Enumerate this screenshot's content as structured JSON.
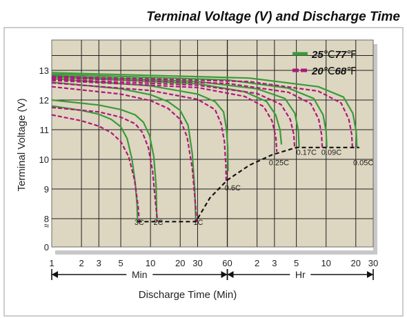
{
  "chart_data": {
    "type": "line",
    "title": "Terminal Voltage (V) and Discharge Time",
    "xlabel": "Discharge Time (Min)",
    "ylabel": "Terminal Voltage (V)",
    "x_scale": "log",
    "x_unit": "minutes",
    "xlim": [
      1,
      1800
    ],
    "ylim": [
      0,
      13.9
    ],
    "y_ticks": [
      0,
      8,
      9,
      10,
      11,
      12,
      13
    ],
    "y_break_marker": "≈",
    "x_tick_labels": [
      {
        "t": 1,
        "label": "1"
      },
      {
        "t": 2,
        "label": "2"
      },
      {
        "t": 3,
        "label": "3"
      },
      {
        "t": 5,
        "label": "5"
      },
      {
        "t": 10,
        "label": "10"
      },
      {
        "t": 20,
        "label": "20"
      },
      {
        "t": 30,
        "label": "30"
      },
      {
        "t": 60,
        "label": "60"
      },
      {
        "t": 120,
        "label": "2"
      },
      {
        "t": 180,
        "label": "3"
      },
      {
        "t": 300,
        "label": "5"
      },
      {
        "t": 600,
        "label": "10"
      },
      {
        "t": 1200,
        "label": "20"
      },
      {
        "t": 1800,
        "label": "30"
      }
    ],
    "x_ranges": [
      {
        "label": "Min",
        "from": 1,
        "to": 60
      },
      {
        "label": "Hr",
        "from": 60,
        "to": 1800
      }
    ],
    "grid": true,
    "legend": {
      "position": "top-right",
      "entries": [
        {
          "bold": "25",
          "unit": "℃",
          "bold2": "77",
          "unit2": "℉",
          "color": "#3a9a3a",
          "style": "solid"
        },
        {
          "bold": "20",
          "unit": "℃",
          "bold2": "68",
          "unit2": "℉",
          "color": "#b0167a",
          "style": "dashed"
        }
      ]
    },
    "colors": {
      "green": "#3a9a3a",
      "magenta": "#b0167a",
      "background": "#ddd6c0"
    },
    "series": [
      {
        "group": "3C",
        "color": "green",
        "style": "solid",
        "points": [
          [
            1,
            11.8
          ],
          [
            2,
            11.65
          ],
          [
            3,
            11.52
          ],
          [
            4,
            11.35
          ],
          [
            5,
            11.1
          ],
          [
            5.8,
            10.7
          ],
          [
            6.5,
            10.0
          ],
          [
            7.0,
            9.2
          ],
          [
            7.3,
            8.5
          ],
          [
            7.4,
            7.9
          ]
        ]
      },
      {
        "group": "3C",
        "color": "magenta",
        "style": "dashed",
        "points": [
          [
            1,
            11.5
          ],
          [
            2,
            11.3
          ],
          [
            3,
            11.12
          ],
          [
            4,
            10.9
          ],
          [
            5,
            10.6
          ],
          [
            6,
            10.1
          ],
          [
            6.9,
            9.3
          ],
          [
            7.5,
            8.4
          ],
          [
            7.7,
            7.9
          ]
        ]
      },
      {
        "group": "2C",
        "color": "green",
        "style": "solid",
        "points": [
          [
            1,
            12.0
          ],
          [
            3,
            11.83
          ],
          [
            5,
            11.68
          ],
          [
            7,
            11.5
          ],
          [
            8.5,
            11.25
          ],
          [
            9.8,
            10.8
          ],
          [
            10.8,
            10.1
          ],
          [
            11.4,
            9.1
          ],
          [
            11.6,
            7.9
          ]
        ]
      },
      {
        "group": "2C",
        "color": "magenta",
        "style": "dashed",
        "points": [
          [
            1,
            11.75
          ],
          [
            3,
            11.6
          ],
          [
            5,
            11.42
          ],
          [
            7,
            11.2
          ],
          [
            8.3,
            10.9
          ],
          [
            9.5,
            10.4
          ],
          [
            10.5,
            9.6
          ],
          [
            11.2,
            8.6
          ],
          [
            11.8,
            7.9
          ]
        ]
      },
      {
        "group": "1C",
        "color": "green",
        "style": "solid",
        "points": [
          [
            1,
            12.6
          ],
          [
            5,
            12.38
          ],
          [
            10,
            12.18
          ],
          [
            15,
            11.95
          ],
          [
            20,
            11.65
          ],
          [
            24,
            11.15
          ],
          [
            26.5,
            10.2
          ],
          [
            28,
            9.0
          ],
          [
            28.8,
            7.9
          ]
        ]
      },
      {
        "group": "1C",
        "color": "magenta",
        "style": "dashed",
        "points": [
          [
            1,
            12.45
          ],
          [
            5,
            12.2
          ],
          [
            10,
            11.98
          ],
          [
            15,
            11.72
          ],
          [
            20,
            11.35
          ],
          [
            23.5,
            10.75
          ],
          [
            26.5,
            9.7
          ],
          [
            28.5,
            8.5
          ],
          [
            29.4,
            7.9
          ]
        ]
      },
      {
        "group": "0.6C",
        "color": "green",
        "style": "solid",
        "points": [
          [
            1,
            12.72
          ],
          [
            10,
            12.48
          ],
          [
            30,
            12.2
          ],
          [
            45,
            11.95
          ],
          [
            55,
            11.6
          ],
          [
            59,
            11.0
          ],
          [
            60.5,
            10.4
          ],
          [
            61,
            9.6
          ]
        ]
      },
      {
        "group": "0.6C",
        "color": "magenta",
        "style": "dashed",
        "points": [
          [
            1,
            12.58
          ],
          [
            10,
            12.32
          ],
          [
            30,
            12.02
          ],
          [
            45,
            11.68
          ],
          [
            52,
            11.2
          ],
          [
            56,
            10.6
          ],
          [
            58,
            9.8
          ],
          [
            58.5,
            9.2
          ]
        ]
      },
      {
        "group": "0.25C",
        "color": "green",
        "style": "solid",
        "points": [
          [
            1,
            12.78
          ],
          [
            30,
            12.55
          ],
          [
            90,
            12.28
          ],
          [
            150,
            11.95
          ],
          [
            185,
            11.5
          ],
          [
            205,
            11.0
          ],
          [
            212,
            10.5
          ]
        ]
      },
      {
        "group": "0.25C",
        "color": "magenta",
        "style": "dashed",
        "points": [
          [
            1,
            12.66
          ],
          [
            30,
            12.42
          ],
          [
            90,
            12.12
          ],
          [
            140,
            11.78
          ],
          [
            170,
            11.3
          ],
          [
            186,
            10.75
          ],
          [
            190,
            10.25
          ]
        ]
      },
      {
        "group": "0.17C",
        "color": "green",
        "style": "solid",
        "points": [
          [
            1,
            12.82
          ],
          [
            30,
            12.62
          ],
          [
            120,
            12.38
          ],
          [
            230,
            12.05
          ],
          [
            290,
            11.55
          ],
          [
            315,
            10.95
          ],
          [
            320,
            10.4
          ]
        ]
      },
      {
        "group": "0.17C",
        "color": "magenta",
        "style": "dashed",
        "points": [
          [
            1,
            12.7
          ],
          [
            30,
            12.5
          ],
          [
            120,
            12.22
          ],
          [
            210,
            11.85
          ],
          [
            260,
            11.35
          ],
          [
            282,
            10.85
          ],
          [
            288,
            10.4
          ]
        ]
      },
      {
        "group": "0.09C",
        "color": "green",
        "style": "solid",
        "points": [
          [
            1,
            12.87
          ],
          [
            60,
            12.68
          ],
          [
            250,
            12.4
          ],
          [
            450,
            12.05
          ],
          [
            560,
            11.5
          ],
          [
            600,
            10.95
          ],
          [
            610,
            10.4
          ]
        ]
      },
      {
        "group": "0.09C",
        "color": "magenta",
        "style": "dashed",
        "points": [
          [
            1,
            12.75
          ],
          [
            60,
            12.56
          ],
          [
            250,
            12.26
          ],
          [
            420,
            11.88
          ],
          [
            505,
            11.35
          ],
          [
            540,
            10.85
          ],
          [
            548,
            10.4
          ]
        ]
      },
      {
        "group": "0.05C",
        "color": "green",
        "style": "solid",
        "points": [
          [
            1,
            12.92
          ],
          [
            100,
            12.74
          ],
          [
            500,
            12.45
          ],
          [
            900,
            12.1
          ],
          [
            1120,
            11.55
          ],
          [
            1210,
            10.95
          ],
          [
            1230,
            10.4
          ]
        ]
      },
      {
        "group": "0.05C",
        "color": "magenta",
        "style": "dashed",
        "points": [
          [
            1,
            12.8
          ],
          [
            100,
            12.62
          ],
          [
            500,
            12.3
          ],
          [
            850,
            11.9
          ],
          [
            1020,
            11.35
          ],
          [
            1090,
            10.85
          ],
          [
            1110,
            10.4
          ]
        ]
      }
    ],
    "cutoff_line": {
      "style": "dashed",
      "color": "#111111",
      "points": [
        [
          7.4,
          7.9
        ],
        [
          28.8,
          7.9
        ],
        [
          40,
          8.7
        ],
        [
          60,
          9.3
        ],
        [
          100,
          9.8
        ],
        [
          170,
          10.15
        ],
        [
          300,
          10.4
        ],
        [
          1300,
          10.4
        ]
      ]
    },
    "annotations": [
      {
        "text": "3C",
        "t": 7.7,
        "v": 7.65
      },
      {
        "text": "2C",
        "t": 12.0,
        "v": 7.65
      },
      {
        "text": "1C",
        "t": 30.5,
        "v": 7.65
      },
      {
        "text": "0.6C",
        "t": 68,
        "v": 8.95
      },
      {
        "text": "0.25C",
        "t": 200,
        "v": 9.8
      },
      {
        "text": "0.17C",
        "t": 380,
        "v": 10.15
      },
      {
        "text": "0.09C",
        "t": 680,
        "v": 10.15
      },
      {
        "text": "0.05C",
        "t": 1430,
        "v": 9.8
      }
    ]
  }
}
